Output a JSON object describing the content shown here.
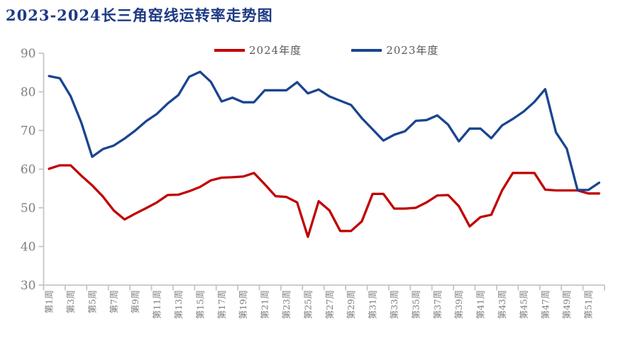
{
  "title": "2023-2024长三角窑线运转率走势图",
  "legend": {
    "items": [
      {
        "label": "2024年度",
        "color": "#C00000"
      },
      {
        "label": "2023年度",
        "color": "#1A458F"
      }
    ]
  },
  "colors": {
    "series_2024": "#C00000",
    "series_2023": "#1A458F",
    "title": "#1E3A85",
    "axis_line": "#C6C6C6",
    "tick_label": "#7F7F7F",
    "legend_text": "#595959",
    "background": "#FFFFFF"
  },
  "chart_data": {
    "type": "line",
    "title": "2023-2024长三角窑线运转率走势图",
    "xlabel": "",
    "ylabel": "",
    "grid": false,
    "legend_position": "top",
    "x_axis": {
      "weeks": 52,
      "label_interval": 2,
      "tick_labels": [
        "第1周",
        "第3周",
        "第5周",
        "第7周",
        "第9周",
        "第11周",
        "第13周",
        "第15周",
        "第17周",
        "第19周",
        "第21周",
        "第23周",
        "第25周",
        "第27周",
        "第29周",
        "第31周",
        "第33周",
        "第35周",
        "第37周",
        "第39周",
        "第41周",
        "第43周",
        "第45周",
        "第47周",
        "第49周",
        "第51周"
      ]
    },
    "y_axis": {
      "min": 30,
      "max": 90,
      "step": 10,
      "ticks": [
        90,
        80,
        70,
        60,
        50,
        40,
        30
      ]
    },
    "series": [
      {
        "name": "2024年度",
        "color": "#C00000",
        "values": [
          60.1,
          61,
          61,
          58.3,
          55.8,
          52.9,
          49.3,
          47,
          48.5,
          49.9,
          51.4,
          53.3,
          53.4,
          54.3,
          55.4,
          57.1,
          57.8,
          57.9,
          58.1,
          59,
          56.1,
          53,
          52.8,
          51.4,
          42.5,
          51.7,
          49.3,
          44,
          44,
          46.5,
          53.6,
          53.6,
          49.8,
          49.8,
          50,
          51.4,
          53.2,
          53.3,
          50.4,
          45.2,
          47.6,
          48.2,
          54.5,
          59,
          59,
          59,
          54.7,
          54.5,
          54.5,
          54.5,
          53.7,
          53.7
        ]
      },
      {
        "name": "2023年度",
        "color": "#1A458F",
        "values": [
          84.1,
          83.5,
          78.9,
          72,
          63.2,
          65.2,
          66.1,
          67.9,
          70,
          72.4,
          74.3,
          77,
          79.2,
          83.9,
          85.2,
          82.6,
          77.5,
          78.5,
          77.3,
          77.3,
          80.4,
          80.4,
          80.4,
          82.5,
          79.6,
          80.6,
          78.8,
          77.7,
          76.6,
          73.2,
          70.3,
          67.4,
          68.9,
          69.8,
          72.5,
          72.7,
          73.9,
          71.5,
          67.2,
          70.5,
          70.5,
          68,
          71.3,
          73,
          74.9,
          77.4,
          80.7,
          69.5,
          65.3,
          54.6,
          54.6,
          56.5
        ]
      }
    ]
  }
}
